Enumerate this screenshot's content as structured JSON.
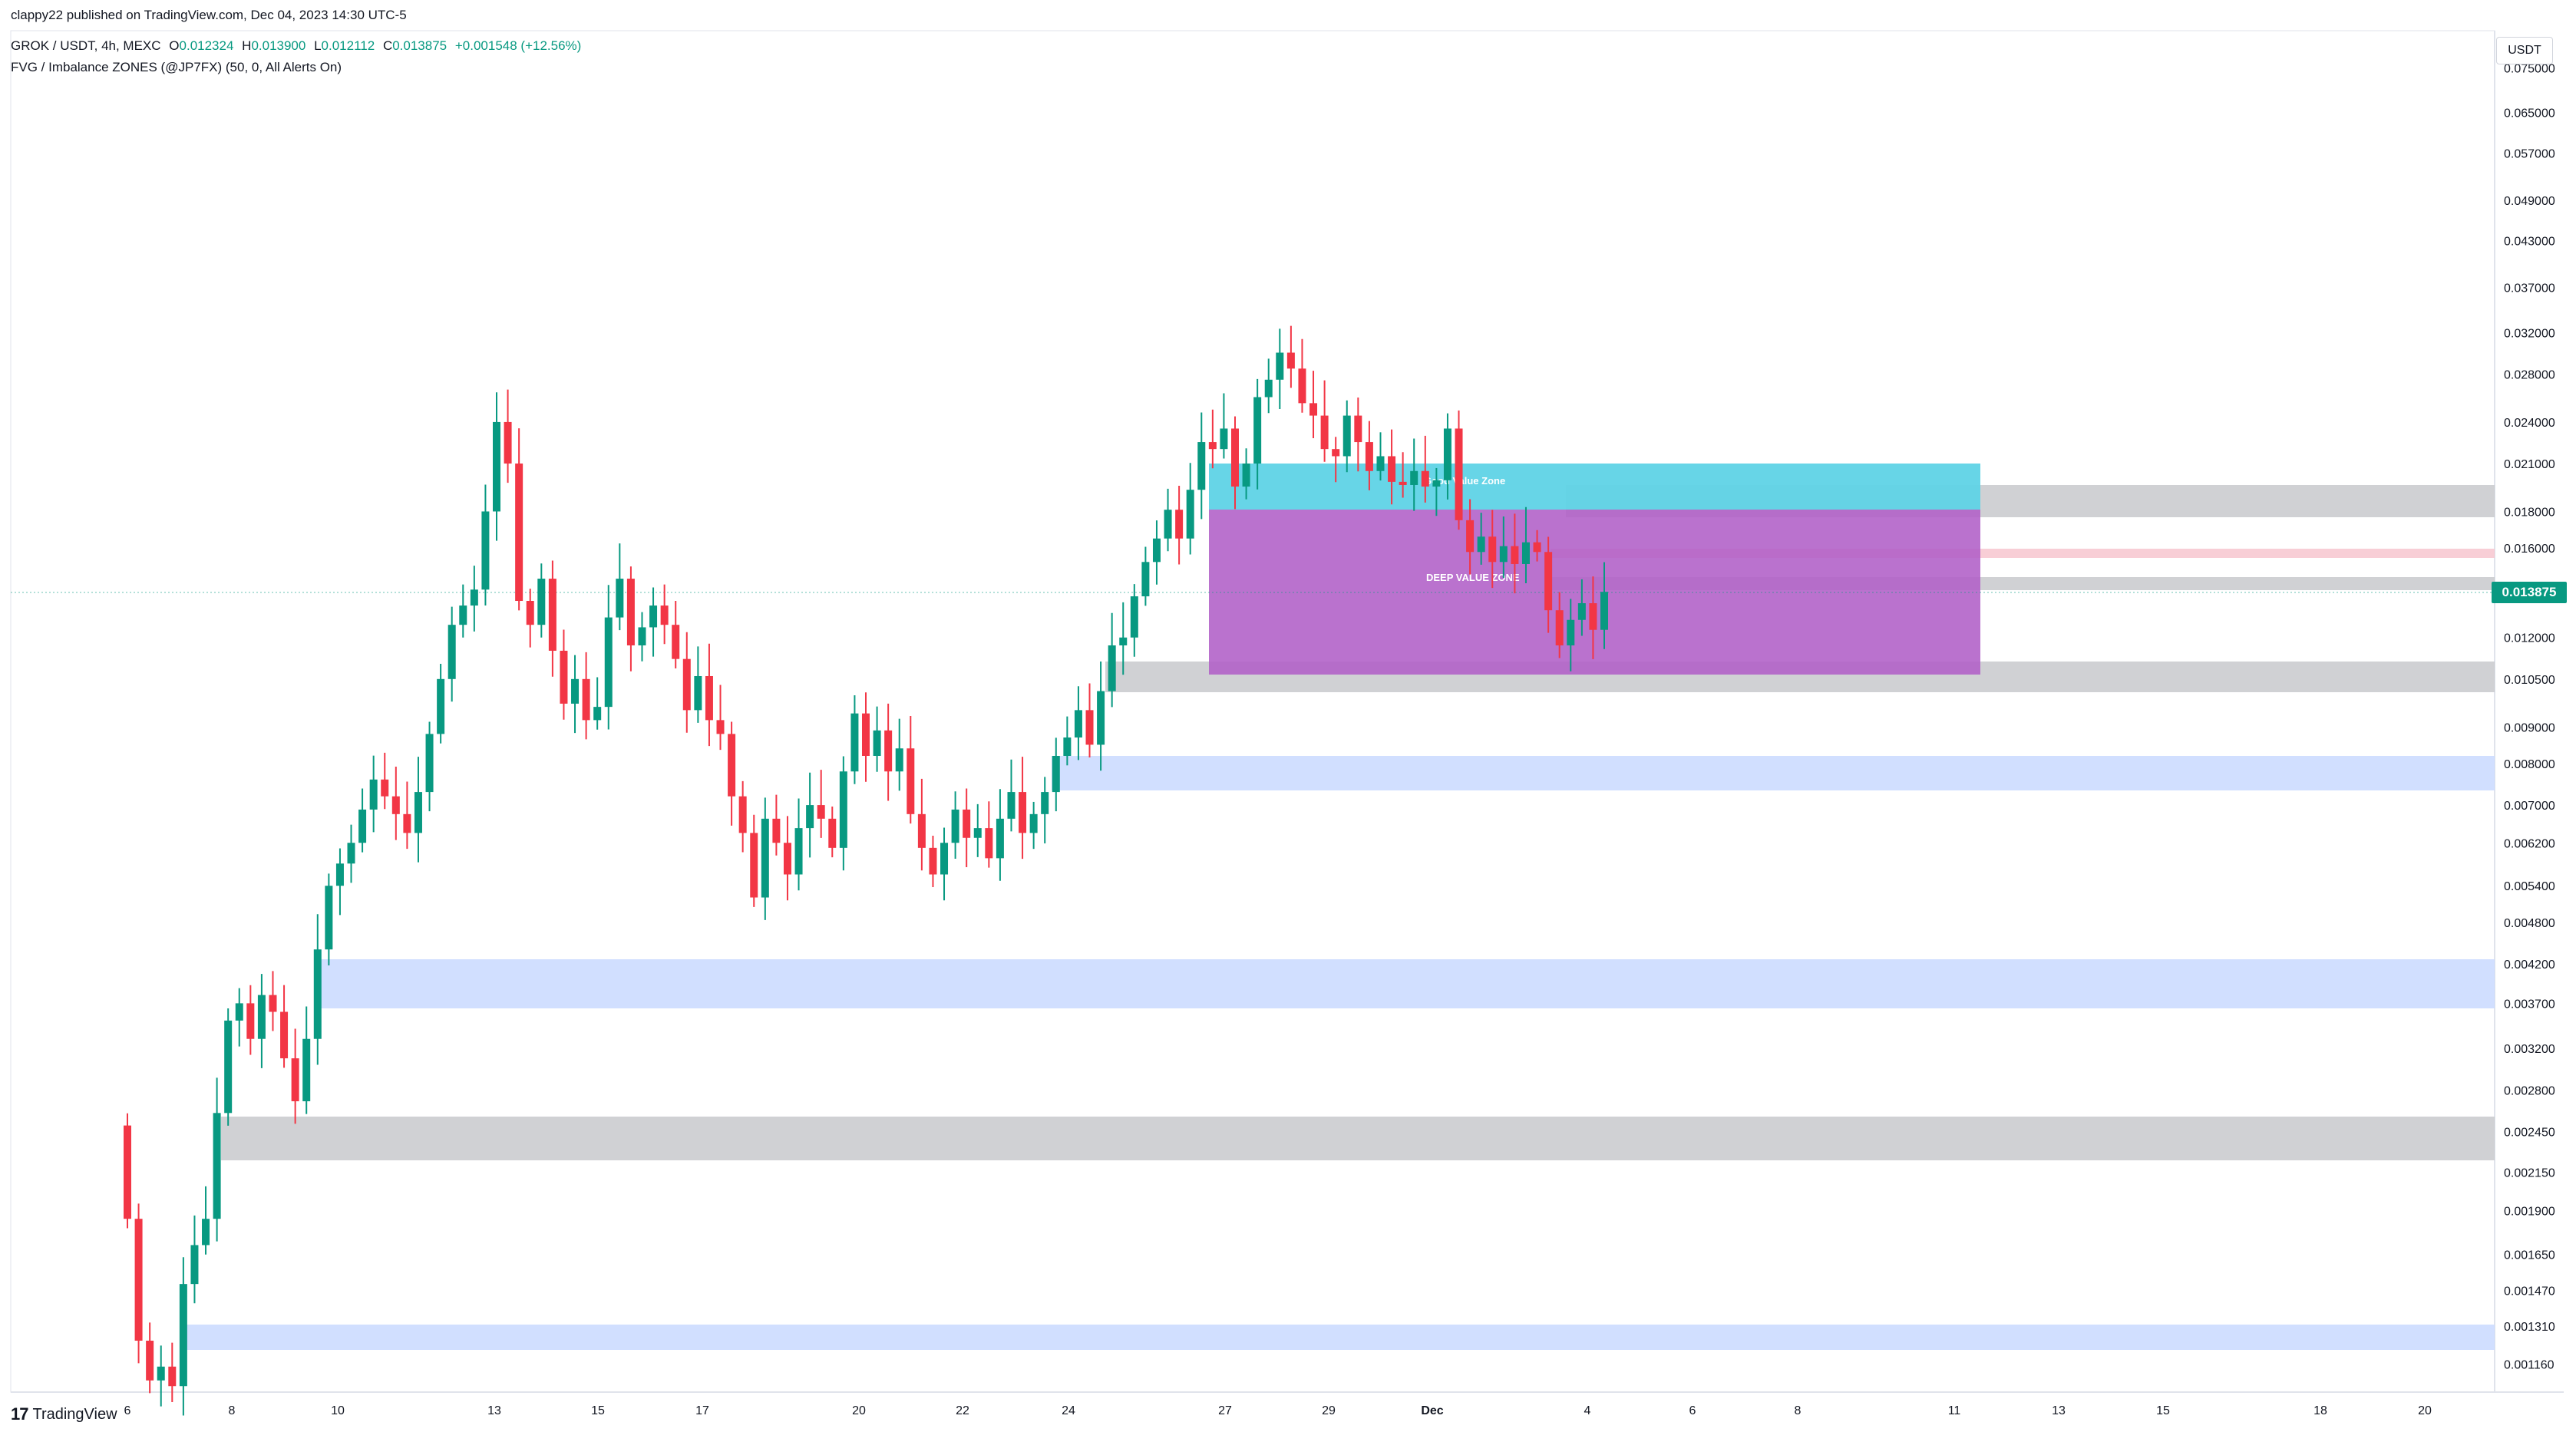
{
  "header": {
    "publisher": "clappy22 published on TradingView.com, Dec 04, 2023 14:30 UTC-5",
    "symbol": "GROK / USDT, 4h, MEXC",
    "ohlc": {
      "open_label": "O",
      "open": "0.012324",
      "high_label": "H",
      "high": "0.013900",
      "low_label": "L",
      "low": "0.012112",
      "close_label": "C",
      "close": "0.013875",
      "change": "+0.001548 (+12.56%)"
    },
    "indicator": "FVG / Imbalance ZONES (@JP7FX) (50, 0, All Alerts On)"
  },
  "price_axis": {
    "currency": "USDT",
    "current_price": "0.013875",
    "ticks": [
      "0.075000",
      "0.065000",
      "0.057000",
      "0.049000",
      "0.043000",
      "0.037000",
      "0.032000",
      "0.028000",
      "0.024000",
      "0.021000",
      "0.018000",
      "0.016000",
      "0.012000",
      "0.010500",
      "0.009000",
      "0.008000",
      "0.007000",
      "0.006200",
      "0.005400",
      "0.004800",
      "0.004200",
      "0.003700",
      "0.003200",
      "0.002800",
      "0.002450",
      "0.002150",
      "0.001900",
      "0.001650",
      "0.001470",
      "0.001310",
      "0.001160"
    ]
  },
  "time_axis": {
    "ticks": [
      "6",
      "8",
      "10",
      "13",
      "15",
      "17",
      "20",
      "22",
      "24",
      "27",
      "29",
      "Dec",
      "4",
      "6",
      "8",
      "11",
      "13",
      "15",
      "18",
      "20"
    ]
  },
  "annotations": {
    "good_value_zone": "Good Value Zone",
    "deep_value_zone": "DEEP VALUE ZONE"
  },
  "footer": {
    "brand": "TradingView",
    "logo": "tradingview-logo-icon"
  },
  "colors": {
    "up": "#089981",
    "down": "#f23645",
    "fvg_blue": "#c9d9ff",
    "fvg_gray": "#c8c9cc",
    "good_zone": "#5fd3e6",
    "deep_zone": "#b15fc7"
  },
  "chart_data": {
    "type": "candlestick",
    "scale": "log",
    "ylim": [
      0.00107,
      0.0845
    ],
    "series_close": [
      0.00185,
      0.00125,
      0.0011,
      0.00115,
      0.00108,
      0.0015,
      0.0017,
      0.00185,
      0.0026,
      0.0035,
      0.0037,
      0.0033,
      0.0038,
      0.0036,
      0.0031,
      0.0027,
      0.0033,
      0.0044,
      0.0054,
      0.0058,
      0.0062,
      0.0069,
      0.0076,
      0.0072,
      0.0068,
      0.0064,
      0.0073,
      0.0088,
      0.0105,
      0.0125,
      0.0133,
      0.014,
      0.018,
      0.024,
      0.021,
      0.0135,
      0.0125,
      0.0145,
      0.0115,
      0.0097,
      0.0105,
      0.0092,
      0.0096,
      0.0128,
      0.0145,
      0.0117,
      0.0124,
      0.0133,
      0.0125,
      0.0112,
      0.0095,
      0.0106,
      0.0092,
      0.0088,
      0.0072,
      0.0064,
      0.0052,
      0.0067,
      0.0062,
      0.0056,
      0.0065,
      0.007,
      0.0067,
      0.0061,
      0.0078,
      0.0094,
      0.0082,
      0.0089,
      0.0078,
      0.0084,
      0.0068,
      0.0061,
      0.0056,
      0.0062,
      0.0069,
      0.0063,
      0.0065,
      0.0059,
      0.0067,
      0.0073,
      0.0064,
      0.0068,
      0.0073,
      0.0082,
      0.0087,
      0.0095,
      0.0085,
      0.0101,
      0.0117,
      0.012,
      0.0137,
      0.0153,
      0.0165,
      0.0181,
      0.0165,
      0.0193,
      0.0225,
      0.022,
      0.0235,
      0.0195,
      0.021,
      0.026,
      0.0275,
      0.03,
      0.0285,
      0.0255,
      0.0245,
      0.022,
      0.0215,
      0.0245,
      0.0225,
      0.0205,
      0.0215,
      0.0198,
      0.0196,
      0.0205,
      0.0195,
      0.0199,
      0.0235,
      0.0175,
      0.0158,
      0.0166,
      0.0153,
      0.0161,
      0.0152,
      0.0163,
      0.0158,
      0.0131,
      0.0117,
      0.0127,
      0.0134,
      0.0123,
      0.0139
    ]
  }
}
